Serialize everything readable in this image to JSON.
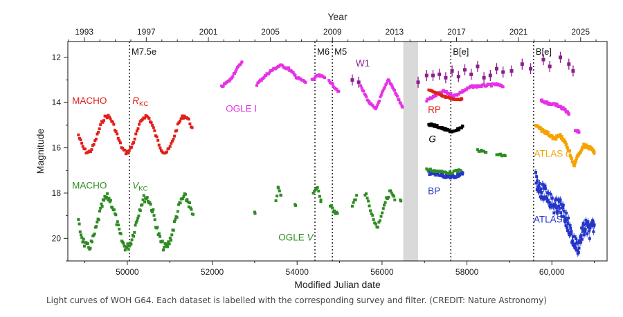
{
  "caption": "Light curves of WOH G64. Each dataset is labelled with the corresponding survey and filter. (CREDIT: Nature Astronomy)",
  "chart_data": {
    "type": "scatter",
    "title": "",
    "xlabel": "Modified Julian date",
    "ylabel": "Magnitude",
    "top_xlabel": "Year",
    "xlim": [
      48600,
      61300
    ],
    "ylim": [
      21.0,
      11.3
    ],
    "y_inverted": true,
    "x_ticks": [
      50000,
      52000,
      54000,
      56000,
      58000,
      60000
    ],
    "x_tick_labels": [
      "50000",
      "52000",
      "54000",
      "56000",
      "58000",
      "60,000"
    ],
    "y_ticks": [
      12,
      14,
      16,
      18,
      20
    ],
    "y_tick_labels": [
      "12",
      "14",
      "16",
      "18",
      "20"
    ],
    "top_ticks": [
      {
        "x": 48987,
        "label": "1993"
      },
      {
        "x": 50448,
        "label": "1997"
      },
      {
        "x": 51910,
        "label": "2001"
      },
      {
        "x": 53371,
        "label": "2005"
      },
      {
        "x": 54832,
        "label": "2009"
      },
      {
        "x": 56293,
        "label": "2013"
      },
      {
        "x": 57754,
        "label": "2017"
      },
      {
        "x": 59215,
        "label": "2021"
      },
      {
        "x": 60676,
        "label": "2025"
      }
    ],
    "top_minor_ticks": [
      48622,
      49353,
      49718,
      50083,
      50814,
      51179,
      51544,
      52275,
      52640,
      53005,
      53736,
      54101,
      54466,
      55197,
      55562,
      55927,
      56658,
      57023,
      57388,
      58119,
      58484,
      58849,
      59580,
      59945,
      60310,
      61041
    ],
    "shaded_region": {
      "x0": 56500,
      "x1": 56850,
      "color": "#d9d9d9"
    },
    "events": [
      {
        "x": 50050,
        "label": "M7.5e"
      },
      {
        "x": 54420,
        "label": "M6"
      },
      {
        "x": 54830,
        "label": "M5"
      },
      {
        "x": 57620,
        "label": "B[e]"
      },
      {
        "x": 59570,
        "label": "B[e]"
      }
    ],
    "labels": [
      {
        "text": "MACHO",
        "x": 48700,
        "y": 14.05,
        "color": "#e0201b"
      },
      {
        "text": "R",
        "sub": "KC",
        "x": 50120,
        "y": 14.05,
        "color": "#e0201b",
        "italic": true
      },
      {
        "text": "OGLE I",
        "x": 52320,
        "y": 14.4,
        "color": "#e631e6"
      },
      {
        "text": "W1",
        "x": 55380,
        "y": 12.4,
        "color": "#8a1f8f"
      },
      {
        "text": "RP",
        "x": 57080,
        "y": 14.45,
        "color": "#e0201b"
      },
      {
        "text": "G",
        "x": 57100,
        "y": 15.75,
        "color": "#000000",
        "italic": true
      },
      {
        "text": "MACHO",
        "x": 48700,
        "y": 17.8,
        "color": "#2e8b22"
      },
      {
        "text": "V",
        "sub": "KC",
        "x": 50120,
        "y": 17.8,
        "color": "#2e8b22",
        "italic": true
      },
      {
        "text": "BP",
        "x": 57080,
        "y": 18.05,
        "color": "#2435c8"
      },
      {
        "text": "OGLE ",
        "it": "V",
        "x": 53560,
        "y": 20.1,
        "color": "#2e8b22"
      },
      {
        "text": "ATLAS ",
        "it": "o",
        "x": 59580,
        "y": 16.4,
        "color": "#f5a300"
      },
      {
        "text": "ATLAS ",
        "it": "c",
        "x": 59570,
        "y": 19.3,
        "color": "#2435c8"
      }
    ],
    "series": [
      {
        "name": "MACHO R",
        "color": "#e0201b",
        "kind": "sine",
        "x0": 48850,
        "x1": 51550,
        "step": 26,
        "mean": 15.4,
        "amp": 0.8,
        "period": 910,
        "phase_x": 49300,
        "jitter": 0.08
      },
      {
        "name": "MACHO V",
        "color": "#2e8b22",
        "kind": "sine",
        "x0": 48850,
        "x1": 51550,
        "step": 20,
        "mean": 19.3,
        "amp": 1.1,
        "period": 910,
        "phase_x": 49300,
        "jitter": 0.18
      },
      {
        "name": "OGLE I",
        "color": "#e631e6",
        "kind": "segments",
        "step": 22,
        "jitter": 0.05,
        "segments": [
          [
            [
              52220,
              13.3
            ],
            [
              52420,
              13.0
            ],
            [
              52550,
              12.6
            ],
            [
              52700,
              12.2
            ]
          ],
          [
            [
              53050,
              13.2
            ],
            [
              53200,
              12.9
            ],
            [
              53380,
              12.6
            ],
            [
              53600,
              12.35
            ],
            [
              53800,
              12.5
            ],
            [
              54000,
              12.9
            ],
            [
              54200,
              13.1
            ]
          ],
          [
            [
              54350,
              13.0
            ],
            [
              54500,
              12.8
            ],
            [
              54650,
              12.9
            ]
          ],
          [
            [
              54750,
              13.0
            ],
            [
              54850,
              13.25
            ],
            [
              54980,
              13.5
            ]
          ],
          [
            [
              55500,
              13.3
            ],
            [
              55700,
              14.0
            ],
            [
              55850,
              14.3
            ],
            [
              56000,
              13.6
            ],
            [
              56150,
              13.0
            ],
            [
              56250,
              13.3
            ],
            [
              56400,
              13.9
            ],
            [
              56480,
              14.2
            ]
          ],
          [
            [
              57050,
              13.9
            ],
            [
              57250,
              13.7
            ],
            [
              57450,
              13.5
            ],
            [
              57700,
              13.7
            ],
            [
              57900,
              13.5
            ],
            [
              58100,
              13.3
            ],
            [
              58400,
              13.25
            ],
            [
              58700,
              13.2
            ],
            [
              58850,
              13.3
            ]
          ]
        ]
      },
      {
        "name": "OGLE V",
        "color": "#2e8b22",
        "kind": "segments",
        "step": 26,
        "jitter": 0.1,
        "segments": [
          [
            [
              53000,
              18.8
            ],
            [
              53010,
              18.9
            ]
          ],
          [
            [
              53500,
              18.3
            ],
            [
              53560,
              17.7
            ],
            [
              53620,
              18.1
            ]
          ],
          [
            [
              53950,
              18.5
            ]
          ],
          [
            [
              54380,
              18.1
            ],
            [
              54480,
              17.7
            ],
            [
              54560,
              18.3
            ]
          ],
          [
            [
              54780,
              18.5
            ],
            [
              54850,
              18.8
            ],
            [
              54950,
              18.9
            ]
          ],
          [
            [
              55300,
              18.6
            ],
            [
              55400,
              18.1
            ]
          ],
          [
            [
              55600,
              18.0
            ],
            [
              55700,
              18.5
            ],
            [
              55800,
              19.2
            ],
            [
              55900,
              19.5
            ],
            [
              56050,
              18.5
            ],
            [
              56200,
              17.9
            ],
            [
              56300,
              18.3
            ]
          ],
          [
            [
              56430,
              18.3
            ]
          ]
        ]
      },
      {
        "name": "W1",
        "color": "#8a1f8f",
        "kind": "errorbars",
        "points": [
          [
            55300,
            13.0
          ],
          [
            55450,
            13.1
          ],
          [
            56850,
            13.1
          ],
          [
            57050,
            12.8
          ],
          [
            57200,
            12.8
          ],
          [
            57350,
            12.75
          ],
          [
            57500,
            12.9
          ],
          [
            57650,
            12.6
          ],
          [
            57800,
            12.85
          ],
          [
            57950,
            12.55
          ],
          [
            58100,
            12.75
          ],
          [
            58250,
            12.4
          ],
          [
            58400,
            12.9
          ],
          [
            58550,
            12.8
          ],
          [
            58700,
            12.5
          ],
          [
            58850,
            12.65
          ],
          [
            59050,
            12.6
          ],
          [
            59300,
            12.3
          ],
          [
            59500,
            12.5
          ],
          [
            59800,
            12.1
          ],
          [
            59950,
            12.4
          ],
          [
            60200,
            12.0
          ],
          [
            60400,
            12.3
          ],
          [
            60500,
            12.6
          ]
        ]
      },
      {
        "name": "RP",
        "color": "#e0201b",
        "kind": "segments",
        "step": 16,
        "jitter": 0.03,
        "segments": [
          [
            [
              57100,
              13.45
            ],
            [
              57300,
              13.6
            ],
            [
              57500,
              13.75
            ],
            [
              57700,
              13.85
            ],
            [
              57880,
              13.85
            ]
          ]
        ]
      },
      {
        "name": "G",
        "color": "#000000",
        "kind": "segments",
        "step": 16,
        "jitter": 0.05,
        "segments": [
          [
            [
              57100,
              14.95
            ],
            [
              57300,
              15.05
            ],
            [
              57500,
              15.2
            ],
            [
              57700,
              15.3
            ],
            [
              57900,
              15.05
            ]
          ]
        ]
      },
      {
        "name": "BP",
        "color": "#2435c8",
        "kind": "segments",
        "step": 16,
        "jitter": 0.08,
        "segments": [
          [
            [
              57100,
              17.1
            ],
            [
              57300,
              17.15
            ],
            [
              57500,
              17.25
            ],
            [
              57700,
              17.3
            ],
            [
              57900,
              17.1
            ]
          ]
        ]
      },
      {
        "name": "BP green",
        "color": "#2e8b22",
        "kind": "segments",
        "step": 30,
        "jitter": 0.05,
        "segments": [
          [
            [
              57050,
              16.95
            ],
            [
              57350,
              17.05
            ],
            [
              57600,
              17.1
            ],
            [
              57850,
              17.0
            ]
          ],
          [
            [
              58250,
              16.1
            ],
            [
              58450,
              16.2
            ]
          ],
          [
            [
              58700,
              16.3
            ],
            [
              58900,
              16.35
            ]
          ]
        ]
      },
      {
        "name": "ATLAS o",
        "color": "#f5a300",
        "kind": "segments",
        "step": 12,
        "jitter": 0.07,
        "segments": [
          [
            [
              59620,
              15.0
            ],
            [
              59750,
              15.2
            ],
            [
              59900,
              15.35
            ],
            [
              60050,
              15.6
            ],
            [
              60200,
              15.45
            ],
            [
              60320,
              15.8
            ],
            [
              60420,
              16.2
            ],
            [
              60520,
              16.8
            ],
            [
              60620,
              16.3
            ],
            [
              60750,
              15.9
            ],
            [
              60900,
              16.0
            ],
            [
              61000,
              16.2
            ]
          ]
        ]
      },
      {
        "name": "ATLAS c",
        "color": "#2435c8",
        "kind": "segments",
        "step": 10,
        "jitter": 0.35,
        "segments": [
          [
            [
              59620,
              17.4
            ],
            [
              59750,
              17.9
            ],
            [
              59900,
              18.1
            ],
            [
              60050,
              18.6
            ],
            [
              60200,
              18.6
            ],
            [
              60350,
              19.2
            ],
            [
              60500,
              20.1
            ],
            [
              60620,
              20.4
            ],
            [
              60700,
              19.8
            ],
            [
              60800,
              19.5
            ],
            [
              60900,
              19.7
            ],
            [
              61000,
              19.4
            ]
          ]
        ]
      },
      {
        "name": "RP late",
        "color": "#e631e6",
        "kind": "segments",
        "step": 14,
        "jitter": 0.05,
        "segments": [
          [
            [
              59750,
              13.9
            ],
            [
              59950,
              14.05
            ],
            [
              60100,
              14.1
            ],
            [
              60300,
              14.3
            ],
            [
              60400,
              14.5
            ]
          ],
          [
            [
              60550,
              15.2
            ],
            [
              60640,
              15.3
            ]
          ]
        ]
      }
    ]
  }
}
